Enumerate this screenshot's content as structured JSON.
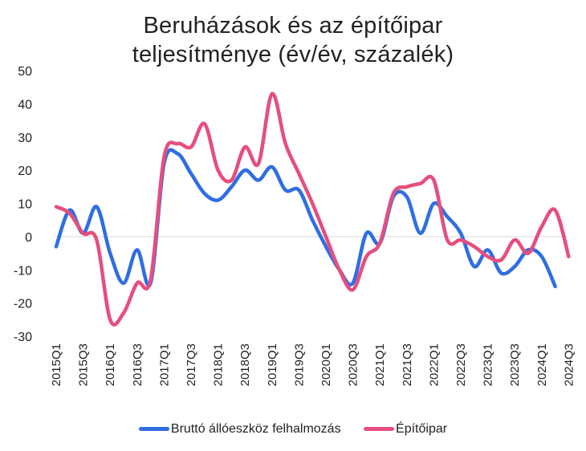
{
  "chart_data": {
    "type": "line",
    "title": "Beruházások és az építőipar",
    "subtitle": "teljesítménye (év/év, százalék)",
    "ylim": [
      -30,
      50
    ],
    "yticks": [
      50,
      40,
      30,
      20,
      10,
      0,
      -10,
      -20,
      -30
    ],
    "xtick_labels": [
      "2015Q1",
      "2015Q3",
      "2016Q1",
      "2016Q3",
      "2017Q1",
      "2017Q3",
      "2018Q1",
      "2018Q3",
      "2019Q1",
      "2019Q3",
      "2020Q1",
      "2020Q3",
      "2021Q1",
      "2021Q3",
      "2022Q1",
      "2022Q3",
      "2023Q1",
      "2023Q3",
      "2024Q1",
      "2024Q3"
    ],
    "categories": [
      "2015Q1",
      "2015Q2",
      "2015Q3",
      "2015Q4",
      "2016Q1",
      "2016Q2",
      "2016Q3",
      "2016Q4",
      "2017Q1",
      "2017Q2",
      "2017Q3",
      "2017Q4",
      "2018Q1",
      "2018Q2",
      "2018Q3",
      "2018Q4",
      "2019Q1",
      "2019Q2",
      "2019Q3",
      "2019Q4",
      "2020Q1",
      "2020Q2",
      "2020Q3",
      "2020Q4",
      "2021Q1",
      "2021Q2",
      "2021Q3",
      "2021Q4",
      "2022Q1",
      "2022Q2",
      "2022Q3",
      "2022Q4",
      "2023Q1",
      "2023Q2",
      "2023Q3",
      "2023Q4",
      "2024Q1",
      "2024Q2",
      "2024Q3"
    ],
    "grid": false,
    "legend_position": "bottom",
    "series": [
      {
        "name": "Bruttó állóeszköz felhalmozás",
        "color": "#2f6ee3",
        "values": [
          -3,
          8,
          1,
          9,
          -5,
          -14,
          -4,
          -14,
          22,
          25,
          19,
          13,
          11,
          15,
          20,
          17,
          21,
          14,
          14,
          5,
          -3,
          -10,
          -14,
          1,
          -2,
          12,
          12,
          1,
          10,
          6,
          1,
          -9,
          -4,
          -11,
          -9,
          -4,
          -6,
          -15,
          null
        ]
      },
      {
        "name": "Építőipar",
        "color": "#e64e7e",
        "values": [
          9,
          7,
          1,
          -1,
          -25,
          -23,
          -14,
          -13,
          24,
          28,
          27,
          34,
          20,
          17,
          27,
          22,
          43,
          28,
          19,
          10,
          0,
          -10,
          -16,
          -6,
          -2,
          13,
          15,
          16,
          17,
          -1,
          -1,
          -3,
          -6,
          -7,
          -1,
          -5,
          3,
          8,
          -6
        ]
      }
    ]
  }
}
